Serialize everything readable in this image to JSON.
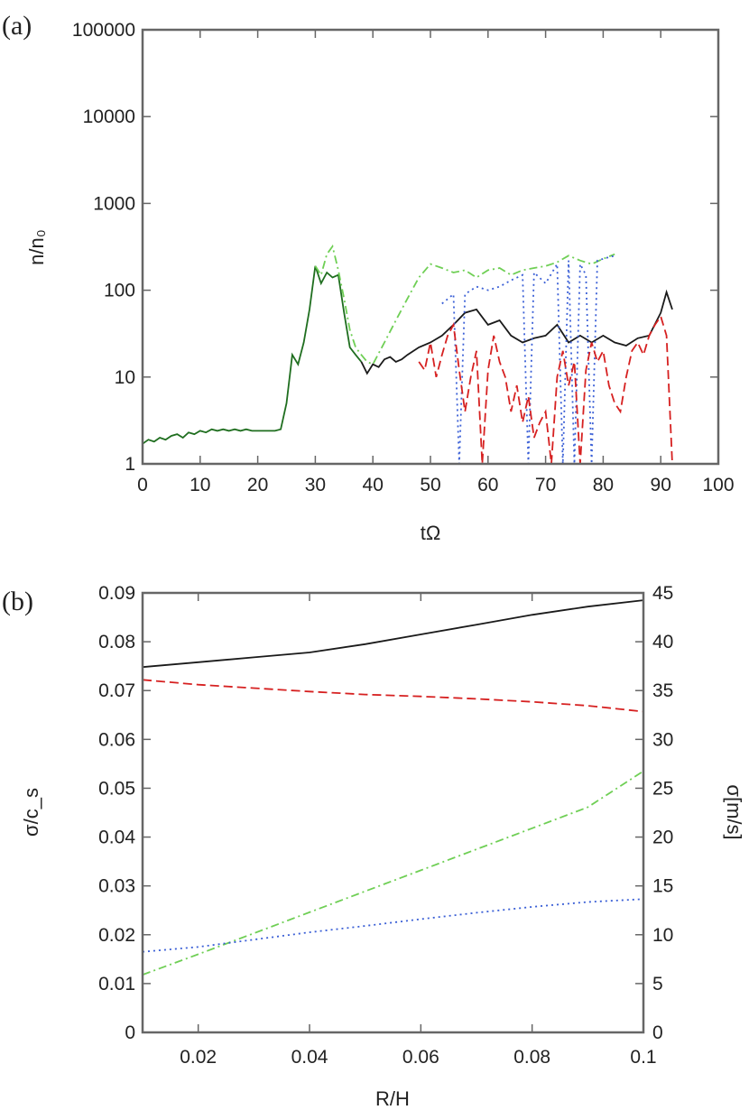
{
  "chart_data": [
    {
      "panel_label": "(a)",
      "type": "line",
      "xlabel": "tΩ",
      "ylabel": "n/n₀",
      "xlim": [
        0,
        100
      ],
      "ylim": [
        1,
        100000
      ],
      "yscale": "log",
      "xticks": [
        "0",
        "10",
        "20",
        "30",
        "40",
        "50",
        "60",
        "70",
        "80",
        "90",
        "100"
      ],
      "yticks": [
        "1",
        "10",
        "100",
        "1000",
        "10000",
        "100000"
      ],
      "series": [
        {
          "color": "#1f6e1f",
          "style": "solid",
          "x": [
            0,
            1,
            2,
            3,
            4,
            5,
            6,
            7,
            8,
            9,
            10,
            11,
            12,
            13,
            14,
            15,
            16,
            17,
            18,
            19,
            20,
            21,
            22,
            23,
            24,
            25,
            26,
            27,
            28,
            29,
            30,
            31,
            32,
            33,
            34,
            35,
            36,
            37,
            38
          ],
          "y": [
            1.7,
            1.9,
            1.8,
            2.0,
            1.9,
            2.1,
            2.2,
            2.0,
            2.3,
            2.2,
            2.4,
            2.3,
            2.5,
            2.4,
            2.5,
            2.4,
            2.5,
            2.4,
            2.5,
            2.4,
            2.4,
            2.4,
            2.4,
            2.4,
            2.5,
            5,
            18,
            14,
            25,
            60,
            190,
            120,
            160,
            140,
            150,
            55,
            22,
            18,
            15
          ]
        },
        {
          "color": "#6fcf55",
          "style": "dashdot",
          "x": [
            30,
            31,
            32,
            33,
            34,
            35,
            36,
            37,
            38,
            39,
            40,
            42,
            44,
            46,
            48,
            50,
            52,
            54,
            56,
            58,
            60,
            62,
            64,
            66,
            68,
            70,
            72,
            74,
            76,
            78,
            80,
            82
          ],
          "y": [
            190,
            150,
            260,
            320,
            170,
            80,
            35,
            22,
            18,
            15,
            14,
            25,
            45,
            80,
            140,
            200,
            180,
            160,
            170,
            140,
            170,
            180,
            150,
            170,
            180,
            190,
            210,
            250,
            220,
            200,
            230,
            260
          ]
        },
        {
          "color": "#1a1a1a",
          "style": "solid",
          "x": [
            38,
            39,
            40,
            41,
            42,
            43,
            44,
            45,
            46,
            48,
            50,
            52,
            54,
            56,
            58,
            60,
            62,
            64,
            66,
            68,
            70,
            72,
            74,
            76,
            78,
            80,
            82,
            84,
            86,
            88,
            90,
            91,
            92
          ],
          "y": [
            15,
            11,
            14,
            13,
            16,
            17,
            15,
            16,
            18,
            22,
            25,
            30,
            40,
            55,
            60,
            40,
            45,
            30,
            25,
            28,
            30,
            40,
            25,
            30,
            25,
            30,
            25,
            23,
            28,
            30,
            55,
            95,
            60
          ]
        },
        {
          "color": "#3a5fd6",
          "style": "dotted",
          "x": [
            52,
            54,
            55,
            56,
            58,
            60,
            62,
            64,
            66,
            67,
            68,
            70,
            72,
            73,
            74,
            75,
            76,
            77,
            78,
            79,
            80,
            82
          ],
          "y": [
            70,
            90,
            1,
            90,
            110,
            100,
            110,
            130,
            150,
            1,
            160,
            120,
            200,
            1,
            220,
            1,
            200,
            150,
            1,
            220,
            230,
            250
          ]
        },
        {
          "color": "#d62020",
          "style": "dashed",
          "x": [
            48,
            49,
            50,
            51,
            52,
            53,
            54,
            55,
            56,
            57,
            58,
            59,
            60,
            61,
            62,
            63,
            64,
            65,
            66,
            67,
            68,
            69,
            70,
            71,
            72,
            73,
            74,
            75,
            76,
            77,
            78,
            79,
            80,
            81,
            82,
            83,
            84,
            85,
            86,
            87,
            88,
            89,
            90,
            91,
            92
          ],
          "y": [
            15,
            12,
            25,
            10,
            18,
            30,
            40,
            12,
            4,
            10,
            20,
            1,
            12,
            30,
            15,
            10,
            4,
            8,
            3,
            6,
            2,
            3,
            4,
            1,
            10,
            20,
            8,
            15,
            1,
            12,
            25,
            15,
            20,
            8,
            5,
            4,
            10,
            20,
            25,
            18,
            30,
            40,
            50,
            30,
            1
          ]
        }
      ]
    },
    {
      "panel_label": "(b)",
      "type": "line",
      "xlabel": "R/H",
      "ylabel": "σ/c_s",
      "y2label": "σ[m/s]",
      "xlim": [
        0.01,
        0.1
      ],
      "ylim": [
        0,
        0.09
      ],
      "y2lim": [
        0,
        45
      ],
      "xticks": [
        "0.02",
        "0.04",
        "0.06",
        "0.08",
        "0.1"
      ],
      "yticks": [
        "0",
        "0.01",
        "0.02",
        "0.03",
        "0.04",
        "0.05",
        "0.06",
        "0.07",
        "0.08",
        "0.09"
      ],
      "y2ticks": [
        "0",
        "5",
        "10",
        "15",
        "20",
        "25",
        "30",
        "35",
        "40",
        "45"
      ],
      "series": [
        {
          "color": "#1a1a1a",
          "style": "solid",
          "x": [
            0.01,
            0.02,
            0.03,
            0.04,
            0.05,
            0.06,
            0.07,
            0.08,
            0.09,
            0.1
          ],
          "y": [
            0.0748,
            0.0758,
            0.0768,
            0.0778,
            0.0795,
            0.0815,
            0.0835,
            0.0855,
            0.0872,
            0.0885
          ]
        },
        {
          "color": "#d62020",
          "style": "dashed",
          "x": [
            0.01,
            0.02,
            0.03,
            0.04,
            0.05,
            0.06,
            0.07,
            0.08,
            0.09,
            0.1
          ],
          "y": [
            0.0722,
            0.0712,
            0.0705,
            0.0698,
            0.0692,
            0.0688,
            0.0683,
            0.0677,
            0.0669,
            0.0657
          ]
        },
        {
          "color": "#6fcf55",
          "style": "dashdot",
          "x": [
            0.01,
            0.02,
            0.03,
            0.04,
            0.05,
            0.06,
            0.07,
            0.08,
            0.09,
            0.1
          ],
          "y": [
            0.0118,
            0.016,
            0.0203,
            0.0246,
            0.0289,
            0.0332,
            0.0375,
            0.0418,
            0.0461,
            0.0535
          ]
        },
        {
          "color": "#3a5fd6",
          "style": "dotted",
          "x": [
            0.01,
            0.02,
            0.03,
            0.04,
            0.05,
            0.06,
            0.07,
            0.08,
            0.09,
            0.1
          ],
          "y": [
            0.0165,
            0.0175,
            0.019,
            0.0205,
            0.0218,
            0.0232,
            0.0245,
            0.0257,
            0.0267,
            0.0273
          ]
        }
      ]
    }
  ]
}
